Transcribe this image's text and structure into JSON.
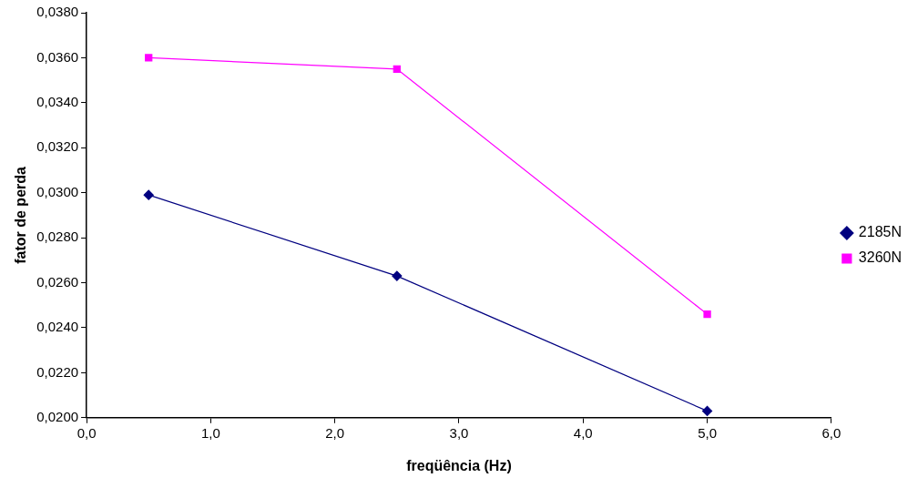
{
  "chart_data": {
    "type": "line",
    "xlabel": "freqüência (Hz)",
    "ylabel": "fator de perda",
    "x": [
      0.5,
      2.5,
      5.0
    ],
    "series": [
      {
        "name": "2185N",
        "color": "#000080",
        "values": [
          0.0299,
          0.0263,
          0.0203
        ],
        "marker": "diamond"
      },
      {
        "name": "3260N",
        "color": "#ff00ff",
        "values": [
          0.036,
          0.0355,
          0.0246
        ],
        "marker": "square"
      }
    ],
    "xlim": [
      0,
      6
    ],
    "xticks": [
      {
        "value": 0,
        "label": "0,0"
      },
      {
        "value": 1,
        "label": "1,0"
      },
      {
        "value": 2,
        "label": "2,0"
      },
      {
        "value": 3,
        "label": "3,0"
      },
      {
        "value": 4,
        "label": "4,0"
      },
      {
        "value": 5,
        "label": "5,0"
      },
      {
        "value": 6,
        "label": "6,0"
      }
    ],
    "ylim": [
      0.02,
      0.038
    ],
    "yticks": [
      {
        "value": 0.02,
        "label": "0,0200"
      },
      {
        "value": 0.022,
        "label": "0,0220"
      },
      {
        "value": 0.024,
        "label": "0,0240"
      },
      {
        "value": 0.026,
        "label": "0,0260"
      },
      {
        "value": 0.028,
        "label": "0,0280"
      },
      {
        "value": 0.03,
        "label": "0,0300"
      },
      {
        "value": 0.032,
        "label": "0,0320"
      },
      {
        "value": 0.034,
        "label": "0,0340"
      },
      {
        "value": 0.036,
        "label": "0,0360"
      },
      {
        "value": 0.038,
        "label": "0,0380"
      }
    ],
    "grid": false,
    "legend": "right",
    "line_style": "solid"
  }
}
